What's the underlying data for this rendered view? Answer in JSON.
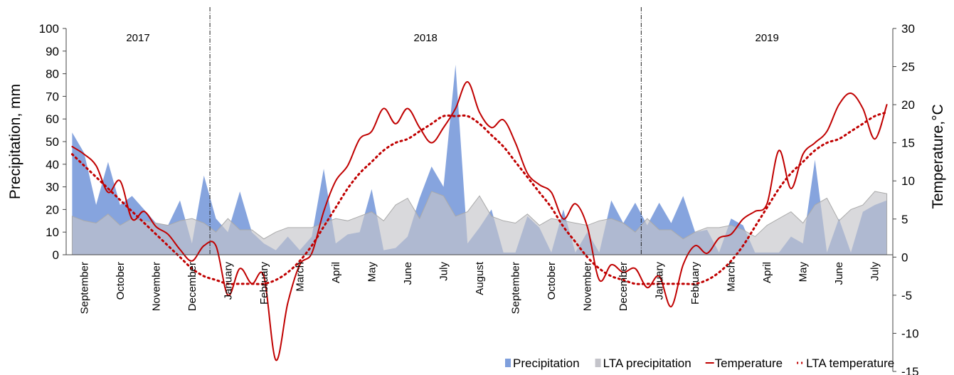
{
  "chart_data": {
    "type": "area-line",
    "y_label": "Precipitation, mm",
    "y2_label": "Temperature,°C",
    "annotations": [
      "2017",
      "2018",
      "2019"
    ],
    "categories": [
      null,
      "September",
      null,
      null,
      "October",
      null,
      null,
      "November",
      null,
      null,
      "December",
      null,
      null,
      "January",
      null,
      null,
      "February",
      null,
      null,
      "March",
      null,
      null,
      "April",
      null,
      null,
      "May",
      null,
      null,
      "June",
      null,
      null,
      "July",
      null,
      null,
      "August",
      null,
      null,
      "September",
      null,
      null,
      "October",
      null,
      null,
      "November",
      null,
      null,
      "December",
      null,
      null,
      "January",
      null,
      null,
      "February",
      null,
      null,
      "March",
      null,
      null,
      "April",
      null,
      null,
      "May",
      null,
      null,
      "June",
      null,
      null,
      "July",
      null
    ],
    "ylim": [
      0,
      100
    ],
    "yticks": [
      0,
      10,
      20,
      30,
      40,
      50,
      60,
      70,
      80,
      90,
      100
    ],
    "y2lim": [
      -15,
      30
    ],
    "y2ticks": [
      -15,
      -10,
      -5,
      0,
      5,
      10,
      15,
      20,
      25,
      30
    ],
    "series": [
      {
        "name": "Precipitation",
        "kind": "area",
        "color": "#7f9fdc",
        "values": [
          54,
          45,
          22,
          41,
          22,
          26,
          20,
          14,
          13,
          24,
          5,
          35,
          16,
          10,
          28,
          10,
          5,
          2,
          8,
          2,
          8,
          38,
          5,
          9,
          10,
          29,
          2,
          3,
          8,
          25,
          39,
          30,
          84,
          5,
          12,
          20,
          1,
          1,
          17,
          12,
          1,
          20,
          1,
          10,
          1,
          24,
          14,
          23,
          13,
          23,
          14,
          26,
          10,
          11,
          1,
          16,
          13,
          1,
          1,
          1,
          8,
          5,
          42,
          1,
          16,
          1,
          19,
          22,
          24
        ]
      },
      {
        "name": "LTA precipitation",
        "kind": "area",
        "color": "#c4c4ca",
        "values": [
          17,
          15,
          14,
          18,
          13,
          16,
          15,
          14,
          13,
          15,
          16,
          14,
          10,
          16,
          11,
          11,
          7,
          10,
          12,
          12,
          12,
          14,
          16,
          15,
          17,
          19,
          15,
          22,
          25,
          16,
          28,
          26,
          17,
          19,
          26,
          17,
          15,
          14,
          18,
          13,
          16,
          15,
          14,
          13,
          15,
          16,
          14,
          10,
          16,
          11,
          11,
          7,
          10,
          12,
          12,
          13,
          11,
          8,
          13,
          16,
          19,
          14,
          22,
          25,
          15,
          20,
          22,
          28,
          27
        ]
      },
      {
        "name": "Temperature",
        "kind": "line",
        "axis": "y2",
        "color": "#c00000",
        "values": [
          14.5,
          13.5,
          12,
          8.5,
          10,
          5,
          6,
          4,
          3,
          1,
          -0.5,
          1.5,
          1.5,
          -5,
          -1.5,
          -3.5,
          -2.5,
          -13.5,
          -6,
          -1,
          0.5,
          6,
          10,
          12,
          15.5,
          16.5,
          19.5,
          17.5,
          19.5,
          17,
          15,
          17,
          19.5,
          23,
          19,
          17,
          18,
          15,
          11,
          9.5,
          8.5,
          5,
          7,
          4,
          -3,
          -1,
          -2,
          -1.5,
          -4,
          -2.5,
          -6.5,
          -1,
          1.5,
          0.5,
          2.5,
          3,
          5,
          6,
          7,
          14,
          9,
          13.5,
          15,
          16.5,
          20,
          21.5,
          19.5,
          15.5,
          20
        ]
      },
      {
        "name": "LTA temperature",
        "kind": "dotted",
        "axis": "y2",
        "color": "#c00000",
        "values": [
          13.5,
          12,
          10.5,
          9,
          7.5,
          6,
          4.5,
          3,
          1.5,
          0,
          -1.5,
          -2.5,
          -3,
          -3.5,
          -3.5,
          -3.5,
          -3.5,
          -3,
          -2,
          -0.5,
          1.5,
          4,
          6.5,
          9,
          11,
          12.5,
          14,
          15,
          15.5,
          16.5,
          17.5,
          18.5,
          18.5,
          18.5,
          17.5,
          16,
          14.5,
          12.5,
          10.5,
          8.5,
          6.5,
          4,
          2,
          0,
          -1.5,
          -2.5,
          -3,
          -3.5,
          -3.5,
          -3.5,
          -3.5,
          -3.5,
          -3.5,
          -3,
          -2,
          -0.5,
          1.5,
          4,
          6.5,
          9,
          11,
          12.5,
          14,
          15,
          15.5,
          16.5,
          17.5,
          18.5,
          19
        ]
      }
    ]
  }
}
